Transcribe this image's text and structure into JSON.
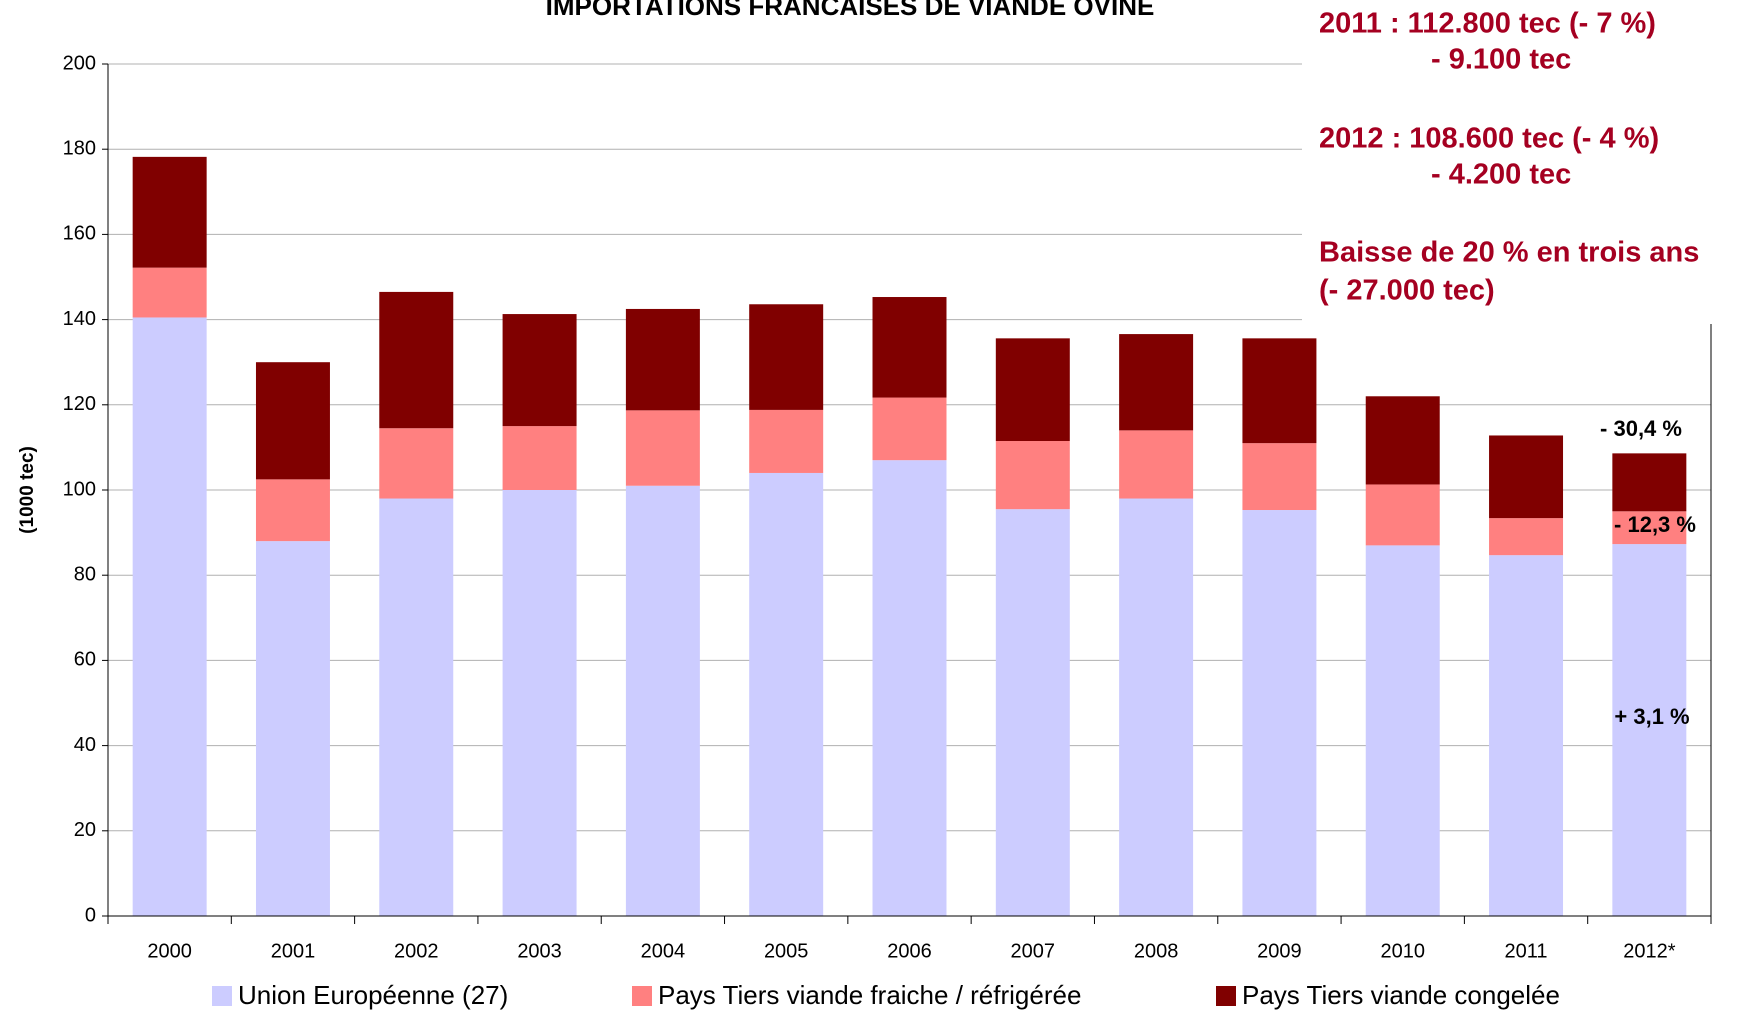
{
  "chart_data": {
    "type": "stacked_bar",
    "title": "IMPORTATIONS FRANCAISES DE VIANDE OVINE",
    "y_axis_label": "(1000 tec)",
    "categories": [
      "2000",
      "2001",
      "2002",
      "2003",
      "2004",
      "2005",
      "2006",
      "2007",
      "2008",
      "2009",
      "2010",
      "2011",
      "2012*"
    ],
    "series": [
      {
        "name": "Union Européenne (27)",
        "color": "#ccccff",
        "values": [
          140.5,
          88,
          98,
          100,
          101,
          104,
          107,
          95.5,
          98,
          95.3,
          87,
          84.7,
          87.3
        ]
      },
      {
        "name": "Pays Tiers viande fraiche / réfrigérée",
        "color": "#ff8080",
        "values": [
          11.7,
          14.5,
          16.5,
          15,
          17.7,
          14.8,
          14.7,
          16,
          16,
          15.7,
          14.3,
          8.7,
          7.7
        ]
      },
      {
        "name": "Pays Tiers viande congelée",
        "color": "#800000",
        "values": [
          26,
          27.5,
          32,
          26.3,
          23.8,
          24.8,
          23.6,
          24.1,
          22.6,
          24.6,
          20.7,
          19.4,
          13.6
        ]
      }
    ],
    "ylim": [
      0,
      200
    ],
    "yticks": [
      0,
      20,
      40,
      60,
      80,
      100,
      120,
      140,
      160,
      180,
      200
    ],
    "grid": true,
    "legend": "bottom",
    "summary": [
      "2011 : 112.800 tec (- 7 %)",
      "- 9.100 tec",
      "2012 :   108.600 tec (- 4 %)",
      "- 4.200 tec",
      "Baisse de 20 % en trois ans",
      "(- 27.000 tec)"
    ],
    "bar_annotations": [
      "- 30,4 %",
      "- 12,3 %",
      "+ 3,1 %"
    ]
  }
}
